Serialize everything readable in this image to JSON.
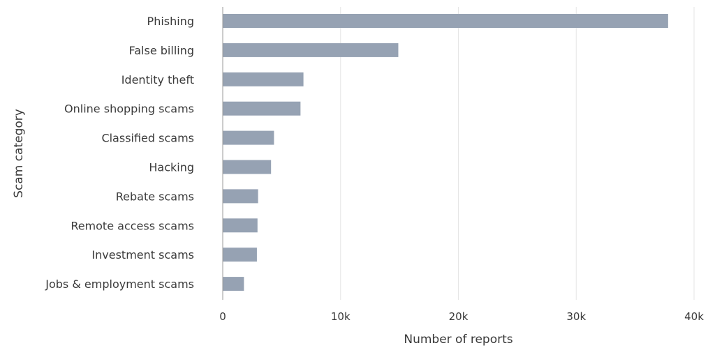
{
  "chart_data": {
    "type": "bar",
    "orientation": "horizontal",
    "categories": [
      "Phishing",
      "False billing",
      "Identity theft",
      "Online shopping scams",
      "Classified scams",
      "Hacking",
      "Rebate scams",
      "Remote access scams",
      "Investment scams",
      "Jobs & employment scams"
    ],
    "values": [
      37800,
      14900,
      6850,
      6600,
      4350,
      4100,
      3000,
      2950,
      2900,
      1800
    ],
    "xlabel": "Number of reports",
    "ylabel": "Scam category",
    "xlim": [
      0,
      40000
    ],
    "x_ticks": [
      0,
      10000,
      20000,
      30000,
      40000
    ],
    "x_tick_labels": [
      "0",
      "10k",
      "20k",
      "30k",
      "40k"
    ],
    "grid": "vertical",
    "bar_color": "#96a2b3"
  }
}
